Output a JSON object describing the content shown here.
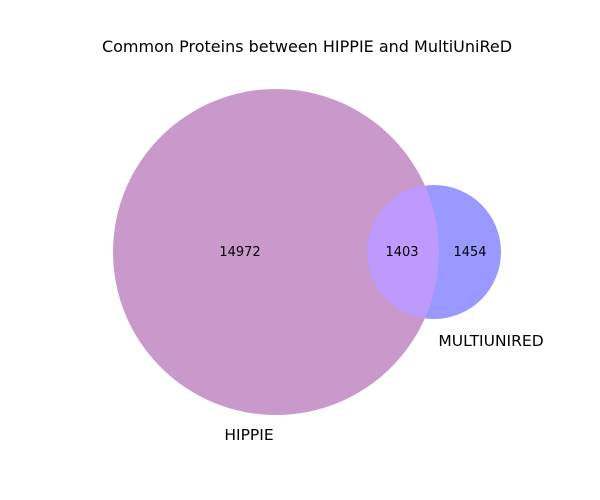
{
  "title": "Common Proteins between HIPPIE and MultiUniReD",
  "sets": [
    {
      "label": "HIPPIE",
      "color": "#c999cb"
    },
    {
      "label": "MULTIUNIRED",
      "color": "#9999ff"
    }
  ],
  "overlap_color": "#be99fe",
  "regions": {
    "hippie_only": "14972",
    "intersection": "1403",
    "multiunired_only": "1454"
  }
}
